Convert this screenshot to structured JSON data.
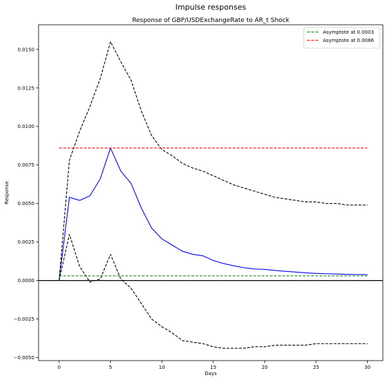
{
  "figure_title": "Impulse responses",
  "chart_data": {
    "type": "line",
    "title": "Response of GBP/USDExchangeRate to AR_t Shock",
    "xlabel": "Days",
    "ylabel": "Response",
    "xlim": [
      -2,
      31.5
    ],
    "ylim": [
      -0.0052,
      0.0166
    ],
    "xticks": [
      0,
      5,
      10,
      15,
      20,
      25,
      30
    ],
    "xtick_labels": [
      "0",
      "5",
      "10",
      "15",
      "20",
      "25",
      "30"
    ],
    "yticks": [
      -0.005,
      -0.0025,
      0.0,
      0.0025,
      0.005,
      0.0075,
      0.01,
      0.0125,
      0.015
    ],
    "ytick_labels": [
      "−0.0050",
      "−0.0025",
      "0.0000",
      "0.0025",
      "0.0050",
      "0.0075",
      "0.0100",
      "0.0125",
      "0.0150"
    ],
    "grid": false,
    "legend_placement": "top-right",
    "zero_line": true,
    "series": [
      {
        "kind": "response",
        "color": "#0000ff",
        "dash": "solid",
        "x": [
          0,
          1,
          2,
          3,
          4,
          5,
          6,
          7,
          8,
          9,
          10,
          11,
          12,
          13,
          14,
          15,
          16,
          17,
          18,
          19,
          20,
          21,
          22,
          23,
          24,
          25,
          26,
          27,
          28,
          29,
          30
        ],
        "y": [
          0.0,
          0.0054,
          0.0052,
          0.0055,
          0.0066,
          0.0086,
          0.0071,
          0.0063,
          0.0047,
          0.0034,
          0.0027,
          0.0023,
          0.0019,
          0.0017,
          0.0016,
          0.0013,
          0.0011,
          0.00095,
          0.00083,
          0.00075,
          0.00072,
          0.00065,
          0.0006,
          0.00055,
          0.0005,
          0.00046,
          0.00044,
          0.00042,
          0.0004,
          0.00039,
          0.00038
        ]
      },
      {
        "kind": "upper-band",
        "color": "#000000",
        "dash": "dashed",
        "x": [
          0,
          1,
          2,
          3,
          4,
          5,
          6,
          7,
          8,
          9,
          10,
          11,
          12,
          13,
          14,
          15,
          16,
          17,
          18,
          19,
          20,
          21,
          22,
          23,
          24,
          25,
          26,
          27,
          28,
          29,
          30
        ],
        "y": [
          0.0,
          0.0078,
          0.0097,
          0.0113,
          0.0131,
          0.0155,
          0.0142,
          0.013,
          0.011,
          0.0094,
          0.0085,
          0.0081,
          0.0076,
          0.0073,
          0.0071,
          0.0068,
          0.0065,
          0.0062,
          0.006,
          0.0058,
          0.0056,
          0.0054,
          0.0053,
          0.0052,
          0.0051,
          0.0051,
          0.005,
          0.005,
          0.0049,
          0.0049,
          0.0049
        ]
      },
      {
        "kind": "lower-band",
        "color": "#000000",
        "dash": "dashed",
        "x": [
          0,
          1,
          2,
          3,
          4,
          5,
          6,
          7,
          8,
          9,
          10,
          11,
          12,
          13,
          14,
          15,
          16,
          17,
          18,
          19,
          20,
          21,
          22,
          23,
          24,
          25,
          26,
          27,
          28,
          29,
          30
        ],
        "y": [
          0.0,
          0.003,
          0.0009,
          -0.0001,
          0.0001,
          0.0017,
          0.0001,
          -0.0005,
          -0.0015,
          -0.0025,
          -0.003,
          -0.0034,
          -0.0039,
          -0.004,
          -0.0041,
          -0.0043,
          -0.0044,
          -0.0044,
          -0.0044,
          -0.0043,
          -0.0043,
          -0.0042,
          -0.0042,
          -0.0042,
          -0.0042,
          -0.0041,
          -0.0041,
          -0.0041,
          -0.0041,
          -0.0041,
          -0.0041
        ]
      },
      {
        "name": "Asymptote at 0.0003",
        "kind": "asymptote",
        "color": "#008000",
        "dash": "dashed",
        "x": [
          0,
          30
        ],
        "y": [
          0.0003,
          0.0003
        ]
      },
      {
        "name": "Asymptote at 0.0086",
        "kind": "asymptote",
        "color": "#ff0000",
        "dash": "dashed",
        "x": [
          0,
          30
        ],
        "y": [
          0.0086,
          0.0086
        ]
      }
    ]
  }
}
